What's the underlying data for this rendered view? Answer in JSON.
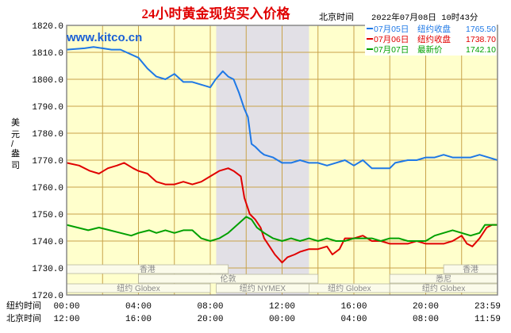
{
  "header": {
    "title": "24小时黄金现货买入价格",
    "timezone_label": "北京时间",
    "timestamp": "2022年07月08日 10时43分"
  },
  "watermark": "www.kitco.cn",
  "colors": {
    "background": "#ffffcc",
    "grid": "#c8a24a",
    "title": "#e00000",
    "watermark": "#1a5fd6",
    "shade": "#e2e0e6"
  },
  "axis_labels": {
    "y_label": "美元/盎司",
    "row1_label": "纽约时间",
    "row2_label": "北京时间"
  },
  "sessions": [
    {
      "name": "香港",
      "start": 0,
      "end": 9,
      "row": 1
    },
    {
      "name": "香港",
      "start": 21,
      "end": 24,
      "row": 1
    },
    {
      "name": "伦敦",
      "start": 4,
      "end": 14,
      "row": 2
    },
    {
      "name": "悉尼",
      "start": 18,
      "end": 24,
      "row": 2
    },
    {
      "name": "纽约 Globex",
      "start": 0,
      "end": 8,
      "row": 3
    },
    {
      "name": "纽约 NYMEX",
      "start": 8.33,
      "end": 13.5,
      "row": 3
    },
    {
      "name": "纽约 Globex",
      "start": 13.5,
      "end": 18,
      "row": 3
    },
    {
      "name": "纽约 Globex",
      "start": 18,
      "end": 24,
      "row": 3
    }
  ],
  "chart_data": {
    "type": "line",
    "ylim": [
      1720,
      1820
    ],
    "yticks": [
      "1820.0",
      "1810.0",
      "1800.0",
      "1790.0",
      "1780.0",
      "1770.0",
      "1760.0",
      "1750.0",
      "1740.0",
      "1730.0",
      "1720.0"
    ],
    "xlim": [
      0,
      24
    ],
    "x_unit": "hours after 00:00 New York time",
    "x_ticks_ny": [
      "00:00",
      "04:00",
      "08:00",
      "12:00",
      "16:00",
      "20:00",
      "23:59"
    ],
    "x_ticks_bj": [
      "12:00",
      "16:00",
      "20:00",
      "00:00",
      "04:00",
      "08:00",
      "11:59"
    ],
    "shaded_range": [
      8.33,
      13.5
    ],
    "legend": [
      {
        "date": "07月05日",
        "label": "纽约收盘",
        "value": "1765.50",
        "color": "#1e78e6"
      },
      {
        "date": "07月06日",
        "label": "纽约收盘",
        "value": "1738.70",
        "color": "#e00000"
      },
      {
        "date": "07月07日",
        "label": "最新价",
        "value": "1742.10",
        "color": "#00a000"
      }
    ],
    "series": [
      {
        "name": "07月05日",
        "color": "#1e78e6",
        "points": [
          [
            0,
            1811
          ],
          [
            1,
            1811.5
          ],
          [
            1.5,
            1812
          ],
          [
            2.5,
            1811
          ],
          [
            3,
            1811
          ],
          [
            4,
            1808
          ],
          [
            4.5,
            1804
          ],
          [
            5,
            1801
          ],
          [
            5.5,
            1800
          ],
          [
            6,
            1802
          ],
          [
            6.5,
            1799
          ],
          [
            7,
            1799
          ],
          [
            7.5,
            1798
          ],
          [
            8,
            1797
          ],
          [
            8.3,
            1800
          ],
          [
            8.7,
            1803
          ],
          [
            9,
            1801
          ],
          [
            9.3,
            1800
          ],
          [
            9.6,
            1795
          ],
          [
            9.9,
            1789
          ],
          [
            10.1,
            1786
          ],
          [
            10.3,
            1776
          ],
          [
            10.5,
            1775
          ],
          [
            10.8,
            1773
          ],
          [
            11,
            1772
          ],
          [
            11.5,
            1771
          ],
          [
            12,
            1769
          ],
          [
            12.5,
            1769
          ],
          [
            13,
            1770
          ],
          [
            13.5,
            1769
          ],
          [
            14,
            1769
          ],
          [
            14.5,
            1768
          ],
          [
            15,
            1769
          ],
          [
            15.5,
            1770
          ],
          [
            16,
            1768
          ],
          [
            16.5,
            1770
          ],
          [
            17,
            1767
          ],
          [
            17.5,
            1767
          ],
          [
            18,
            1767
          ],
          [
            18.3,
            1769
          ],
          [
            19,
            1770
          ],
          [
            19.5,
            1770
          ],
          [
            20,
            1771
          ],
          [
            20.5,
            1771
          ],
          [
            21,
            1772
          ],
          [
            21.5,
            1771
          ],
          [
            22,
            1771
          ],
          [
            22.5,
            1771
          ],
          [
            23,
            1772
          ],
          [
            23.5,
            1771
          ],
          [
            24,
            1770
          ]
        ]
      },
      {
        "name": "07月06日",
        "color": "#e00000",
        "points": [
          [
            0,
            1769
          ],
          [
            0.7,
            1768
          ],
          [
            1.3,
            1766
          ],
          [
            1.8,
            1765
          ],
          [
            2.3,
            1767
          ],
          [
            2.8,
            1768
          ],
          [
            3.2,
            1769
          ],
          [
            3.7,
            1767
          ],
          [
            4,
            1766
          ],
          [
            4.5,
            1765
          ],
          [
            5,
            1762
          ],
          [
            5.5,
            1761
          ],
          [
            6,
            1761
          ],
          [
            6.5,
            1762
          ],
          [
            7,
            1761
          ],
          [
            7.5,
            1762
          ],
          [
            8,
            1764
          ],
          [
            8.5,
            1766
          ],
          [
            9,
            1767
          ],
          [
            9.3,
            1766
          ],
          [
            9.7,
            1764
          ],
          [
            9.9,
            1756
          ],
          [
            10.2,
            1750
          ],
          [
            10.5,
            1748
          ],
          [
            10.8,
            1745
          ],
          [
            11,
            1741
          ],
          [
            11.3,
            1738
          ],
          [
            11.6,
            1735
          ],
          [
            12,
            1732
          ],
          [
            12.3,
            1734
          ],
          [
            12.7,
            1735
          ],
          [
            13,
            1736
          ],
          [
            13.5,
            1737
          ],
          [
            14,
            1737
          ],
          [
            14.5,
            1738
          ],
          [
            14.8,
            1735
          ],
          [
            15.2,
            1737
          ],
          [
            15.5,
            1741
          ],
          [
            16,
            1741
          ],
          [
            16.5,
            1742
          ],
          [
            17,
            1740
          ],
          [
            17.5,
            1740
          ],
          [
            18,
            1739
          ],
          [
            18.5,
            1739
          ],
          [
            19,
            1739
          ],
          [
            19.5,
            1740
          ],
          [
            20,
            1739
          ],
          [
            20.5,
            1739
          ],
          [
            21,
            1739
          ],
          [
            21.5,
            1740
          ],
          [
            22,
            1742
          ],
          [
            22.3,
            1739
          ],
          [
            22.6,
            1738
          ],
          [
            23,
            1741
          ],
          [
            23.4,
            1745
          ],
          [
            23.7,
            1746
          ],
          [
            24,
            1746
          ]
        ]
      },
      {
        "name": "07月07日",
        "color": "#00a000",
        "points": [
          [
            0,
            1746
          ],
          [
            0.6,
            1745
          ],
          [
            1.2,
            1744
          ],
          [
            1.8,
            1745
          ],
          [
            2.4,
            1744
          ],
          [
            3,
            1743
          ],
          [
            3.6,
            1742
          ],
          [
            4,
            1743
          ],
          [
            4.6,
            1744
          ],
          [
            5,
            1743
          ],
          [
            5.5,
            1744
          ],
          [
            6,
            1743
          ],
          [
            6.5,
            1744
          ],
          [
            7,
            1744
          ],
          [
            7.5,
            1741
          ],
          [
            8,
            1740
          ],
          [
            8.5,
            1741
          ],
          [
            9,
            1743
          ],
          [
            9.5,
            1746
          ],
          [
            10,
            1749
          ],
          [
            10.3,
            1748
          ],
          [
            10.6,
            1745
          ],
          [
            11,
            1743
          ],
          [
            11.5,
            1741
          ],
          [
            12,
            1740
          ],
          [
            12.5,
            1741
          ],
          [
            13,
            1740
          ],
          [
            13.5,
            1741
          ],
          [
            14,
            1740
          ],
          [
            14.5,
            1741
          ],
          [
            15,
            1740
          ],
          [
            15.5,
            1740
          ],
          [
            16,
            1741
          ],
          [
            16.5,
            1741
          ],
          [
            17,
            1741
          ],
          [
            17.5,
            1740
          ],
          [
            18,
            1741
          ],
          [
            18.5,
            1741
          ],
          [
            19,
            1740
          ],
          [
            19.5,
            1740
          ],
          [
            20,
            1740
          ],
          [
            20.5,
            1742
          ],
          [
            21,
            1743
          ],
          [
            21.5,
            1744
          ],
          [
            22,
            1743
          ],
          [
            22.5,
            1742
          ],
          [
            23,
            1743
          ],
          [
            23.3,
            1746
          ],
          [
            23.6,
            1746
          ],
          [
            24,
            1746
          ]
        ]
      }
    ]
  }
}
